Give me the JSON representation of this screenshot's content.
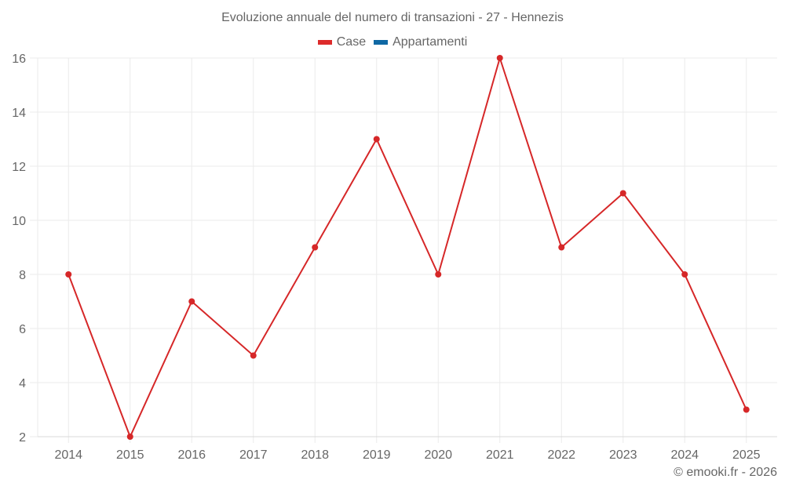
{
  "chart_data": {
    "type": "line",
    "title": "Evoluzione annuale del numero di transazioni - 27 - Hennezis",
    "categories": [
      "2014",
      "2015",
      "2016",
      "2017",
      "2018",
      "2019",
      "2020",
      "2021",
      "2022",
      "2023",
      "2024",
      "2025"
    ],
    "series": [
      {
        "name": "Case",
        "color": "#d62728",
        "values": [
          8,
          2,
          7,
          5,
          9,
          13,
          8,
          16,
          9,
          11,
          8,
          3
        ]
      },
      {
        "name": "Appartamenti",
        "color": "#1f77b4",
        "values": []
      }
    ],
    "xlabel": "",
    "ylabel": "",
    "ylim": [
      2,
      16
    ],
    "yticks": [
      2,
      4,
      6,
      8,
      10,
      12,
      14,
      16
    ],
    "grid": true,
    "legend_position": "top"
  },
  "legend": [
    {
      "label": "Case",
      "color": "#dd2b2b"
    },
    {
      "label": "Appartamenti",
      "color": "#0f68a4"
    }
  ],
  "credit": "© emooki.fr - 2026"
}
